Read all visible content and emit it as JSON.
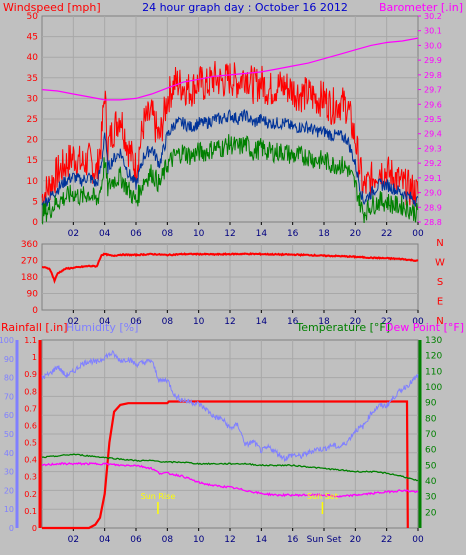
{
  "colors": {
    "background": "#c0c0c0",
    "panel_border": "#808080",
    "wind_gust": "#ff0000",
    "wind_avg": "#003399",
    "wind_min": "#008000",
    "barometer": "#ff00ff",
    "direction": "#ff0000",
    "rain": "#ff0000",
    "humidity": "#8080ff",
    "temperature": "#008000",
    "dewpoint": "#ff00ff",
    "sun_marker": "#ffff00",
    "title": "#0000cc",
    "axis_text": "#000080"
  },
  "chart_data": [
    {
      "type": "line",
      "id": "wind-barometer",
      "title": "24 hour graph day : October 16 2012",
      "ylabel_left": "Windspeed [mph]",
      "ylabel_right": "Barometer [.in]",
      "x_tick_labels": [
        "02",
        "04",
        "06",
        "08",
        "10",
        "12",
        "14",
        "16",
        "18",
        "20",
        "22",
        "00"
      ],
      "x_range_hours": [
        0,
        24
      ],
      "ylim_left": [
        0,
        50
      ],
      "left_ticks": [
        "0",
        "5",
        "10",
        "15",
        "20",
        "25",
        "30",
        "35",
        "40",
        "45",
        "50"
      ],
      "ylim_right": [
        28.8,
        30.2
      ],
      "right_ticks": [
        "28.8",
        "28.9",
        "29.0",
        "29.1",
        "29.2",
        "29.3",
        "29.4",
        "29.5",
        "29.6",
        "29.7",
        "29.8",
        "29.9",
        "30.0",
        "30.1",
        "30.2"
      ],
      "series": [
        {
          "key": "wind_gust",
          "hours": [
            0,
            0.5,
            1,
            1.5,
            2,
            2.5,
            3,
            3.5,
            3.8,
            4,
            4.2,
            4.5,
            5,
            5.5,
            6,
            6.5,
            7,
            7.5,
            8,
            8.5,
            9,
            9.5,
            10,
            10.5,
            11,
            11.5,
            12,
            12.5,
            13,
            13.5,
            14,
            14.5,
            15,
            15.5,
            16,
            16.5,
            17,
            17.5,
            18,
            18.5,
            19,
            19.5,
            20,
            20.5,
            21,
            21.5,
            22,
            22.5,
            23,
            23.5,
            24
          ],
          "values": [
            6,
            9,
            12,
            14,
            16,
            14,
            15,
            12,
            20,
            32,
            18,
            22,
            26,
            18,
            13,
            24,
            26,
            20,
            30,
            34,
            33,
            32,
            34,
            33,
            35,
            34,
            35,
            34,
            36,
            33,
            34,
            32,
            33,
            33,
            32,
            31,
            31,
            30,
            30,
            28,
            29,
            28,
            20,
            8,
            10,
            13,
            12,
            11,
            9,
            8,
            7
          ]
        },
        {
          "key": "wind_avg",
          "hours": [
            0,
            0.5,
            1,
            1.5,
            2,
            2.5,
            3,
            3.5,
            3.8,
            4,
            4.2,
            4.5,
            5,
            5.5,
            6,
            6.5,
            7,
            7.5,
            8,
            8.5,
            9,
            9.5,
            10,
            10.5,
            11,
            11.5,
            12,
            12.5,
            13,
            13.5,
            14,
            14.5,
            15,
            15.5,
            16,
            16.5,
            17,
            17.5,
            18,
            18.5,
            19,
            19.5,
            20,
            20.5,
            21,
            21.5,
            22,
            22.5,
            23,
            23.5,
            24
          ],
          "values": [
            4,
            6,
            8,
            10,
            11,
            10,
            11,
            9,
            14,
            22,
            13,
            15,
            17,
            12,
            9,
            16,
            18,
            14,
            21,
            24,
            24,
            23,
            24,
            24,
            25,
            25,
            26,
            25,
            26,
            24,
            25,
            24,
            24,
            24,
            23,
            23,
            23,
            22,
            22,
            21,
            21,
            20,
            14,
            5,
            7,
            9,
            9,
            8,
            7,
            6,
            5
          ]
        },
        {
          "key": "wind_min",
          "hours": [
            0,
            0.5,
            1,
            1.5,
            2,
            2.5,
            3,
            3.5,
            3.8,
            4,
            4.2,
            4.5,
            5,
            5.5,
            6,
            6.5,
            7,
            7.5,
            8,
            8.5,
            9,
            9.5,
            10,
            10.5,
            11,
            11.5,
            12,
            12.5,
            13,
            13.5,
            14,
            14.5,
            15,
            15.5,
            16,
            16.5,
            17,
            17.5,
            18,
            18.5,
            19,
            19.5,
            20,
            20.5,
            21,
            21.5,
            22,
            22.5,
            23,
            23.5,
            24
          ],
          "values": [
            2,
            3,
            5,
            6,
            7,
            6,
            7,
            5,
            9,
            15,
            8,
            10,
            11,
            8,
            5,
            10,
            12,
            9,
            14,
            16,
            17,
            16,
            17,
            17,
            18,
            18,
            19,
            18,
            19,
            17,
            18,
            17,
            17,
            17,
            16,
            16,
            16,
            15,
            15,
            14,
            14,
            13,
            9,
            2,
            4,
            5,
            5,
            4,
            4,
            3,
            2
          ]
        },
        {
          "key": "barometer",
          "axis": "right",
          "hours": [
            0,
            1,
            2,
            3,
            4,
            5,
            6,
            7,
            8,
            9,
            10,
            11,
            12,
            13,
            14,
            15,
            16,
            17,
            18,
            19,
            20,
            21,
            22,
            23,
            24
          ],
          "values": [
            29.7,
            29.69,
            29.67,
            29.65,
            29.63,
            29.63,
            29.64,
            29.67,
            29.71,
            29.75,
            29.77,
            29.79,
            29.8,
            29.81,
            29.82,
            29.84,
            29.86,
            29.88,
            29.91,
            29.94,
            29.97,
            30.0,
            30.02,
            30.03,
            30.05
          ]
        }
      ]
    },
    {
      "type": "line",
      "id": "wind-direction",
      "ylim": [
        0,
        360
      ],
      "left_ticks": [
        "0",
        "90",
        "180",
        "270",
        "360"
      ],
      "right_labels": [
        "N",
        "W",
        "S",
        "E",
        "N"
      ],
      "x_tick_labels": [
        "02",
        "04",
        "06",
        "08",
        "10",
        "12",
        "14",
        "16",
        "18",
        "20",
        "22",
        "00"
      ],
      "x_range_hours": [
        0,
        24
      ],
      "series": [
        {
          "key": "direction",
          "hours": [
            0,
            0.5,
            0.8,
            1,
            1.5,
            2,
            2.5,
            3,
            3.5,
            3.8,
            4,
            4.5,
            5,
            6,
            7,
            8,
            9,
            10,
            11,
            12,
            13,
            14,
            15,
            16,
            17,
            18,
            19,
            20,
            21,
            22,
            23,
            24
          ],
          "values": [
            235,
            225,
            160,
            200,
            225,
            230,
            235,
            240,
            238,
            300,
            305,
            295,
            302,
            300,
            305,
            300,
            305,
            305,
            303,
            305,
            306,
            305,
            303,
            302,
            300,
            296,
            294,
            290,
            285,
            282,
            278,
            268
          ]
        }
      ]
    },
    {
      "type": "line",
      "id": "rain-humidity-temperature",
      "ylabel_rain": "Rainfall [.in]",
      "ylabel_humidity": "Humidity [%]",
      "ylabel_temperature": "Temperature [°F]",
      "ylabel_dewpoint": "Dew Point [°F]",
      "ylim_humidity": [
        0,
        100
      ],
      "humidity_ticks": [
        "0",
        "10",
        "20",
        "30",
        "40",
        "50",
        "60",
        "70",
        "80",
        "90",
        "100"
      ],
      "ylim_rain": [
        0,
        1.1
      ],
      "rain_ticks": [
        "0",
        "0.1",
        "0.2",
        "0.3",
        "0.4",
        "0.5",
        "0.6",
        "0.7",
        "0.8",
        "0.9",
        "1",
        "1.1"
      ],
      "ylim_temperature": [
        10,
        130
      ],
      "temperature_ticks": [
        "20",
        "30",
        "40",
        "50",
        "60",
        "70",
        "80",
        "90",
        "100",
        "110",
        "120",
        "130"
      ],
      "x_tick_labels": [
        "02",
        "04",
        "06",
        "08",
        "10",
        "12",
        "14",
        "16",
        "Sun Set",
        "20",
        "22",
        "00"
      ],
      "x_range_hours": [
        0,
        24
      ],
      "sun_rise_label": "Sun Rise",
      "sun_set_label": "Sun Set",
      "sun_rise_hour": 7.4,
      "sun_set_hour": 17.9,
      "series": [
        {
          "key": "rain",
          "hours": [
            0,
            2,
            3,
            3.4,
            3.7,
            4,
            4.3,
            4.6,
            5,
            5.5,
            6,
            7,
            7.5,
            8,
            8.1,
            10,
            12,
            14,
            16,
            18,
            20,
            22,
            23.3,
            23.35
          ],
          "values": [
            0,
            0,
            0,
            0.02,
            0.06,
            0.2,
            0.5,
            0.68,
            0.72,
            0.73,
            0.73,
            0.73,
            0.73,
            0.73,
            0.74,
            0.74,
            0.74,
            0.74,
            0.74,
            0.74,
            0.74,
            0.74,
            0.74,
            0
          ]
        },
        {
          "key": "humidity",
          "hours": [
            0,
            0.5,
            1,
            1.5,
            2,
            2.5,
            3,
            3.5,
            4,
            4.5,
            5,
            5.5,
            6,
            6.5,
            7,
            7.5,
            8,
            8.5,
            9,
            9.5,
            10,
            10.5,
            11,
            11.5,
            12,
            12.5,
            13,
            13.5,
            14,
            14.5,
            15,
            15.5,
            16,
            16.5,
            17,
            17.5,
            18,
            18.5,
            19,
            19.5,
            20,
            20.5,
            21,
            21.5,
            22,
            22.5,
            23,
            23.5,
            24
          ],
          "values": [
            80,
            82,
            86,
            81,
            83,
            87,
            89,
            88,
            91,
            93,
            89,
            90,
            87,
            88,
            89,
            78,
            79,
            70,
            68,
            67,
            66,
            63,
            59,
            58,
            53,
            55,
            44,
            46,
            41,
            43,
            40,
            37,
            39,
            38,
            40,
            42,
            42,
            44,
            43,
            46,
            52,
            54,
            61,
            65,
            65,
            70,
            74,
            77,
            81
          ]
        },
        {
          "key": "temperature",
          "axis": "temperature",
          "hours": [
            0,
            1,
            2,
            3,
            4,
            5,
            6,
            7,
            8,
            9,
            10,
            11,
            12,
            13,
            14,
            15,
            16,
            17,
            18,
            19,
            20,
            21,
            22,
            23,
            24
          ],
          "values": [
            55,
            56,
            57,
            56,
            55,
            54,
            53,
            53,
            52,
            52,
            51,
            51,
            51,
            51,
            50,
            50,
            50,
            49,
            48,
            47,
            46,
            46,
            45,
            43,
            40
          ]
        },
        {
          "key": "dewpoint",
          "axis": "temperature",
          "hours": [
            0,
            1,
            2,
            3,
            4,
            5,
            6,
            7,
            7.5,
            8,
            9,
            10,
            11,
            12,
            13,
            14,
            15,
            16,
            17,
            18,
            19,
            20,
            21,
            22,
            23,
            24
          ],
          "values": [
            50,
            51,
            51,
            51,
            51,
            50,
            50,
            48,
            45,
            45,
            43,
            39,
            37,
            36,
            34,
            32,
            31,
            31,
            31,
            31,
            30,
            31,
            32,
            33,
            34,
            33
          ]
        }
      ]
    }
  ]
}
